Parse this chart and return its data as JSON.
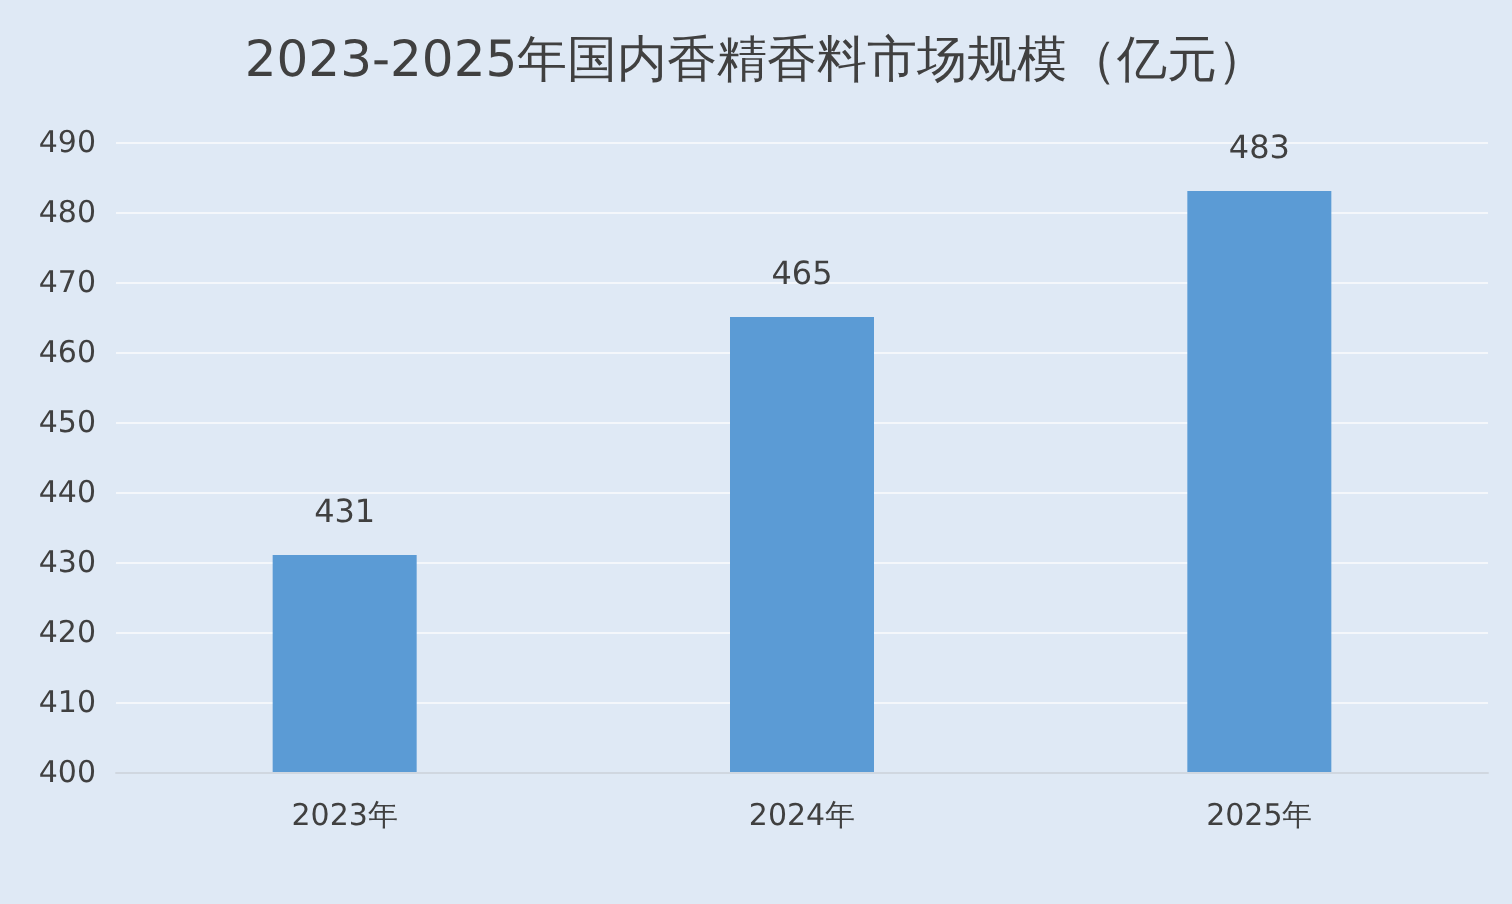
{
  "chart_data": {
    "type": "bar",
    "title": "2023-2025年国内香精香料市场规模（亿元）",
    "categories": [
      "2023年",
      "2024年",
      "2025年"
    ],
    "values": [
      431,
      465,
      483
    ],
    "color": "#5b9bd5",
    "ylim": [
      400,
      490
    ],
    "yticks": [
      400,
      410,
      420,
      430,
      440,
      450,
      460,
      470,
      480,
      490
    ],
    "grid": "y",
    "data_labels": true
  }
}
